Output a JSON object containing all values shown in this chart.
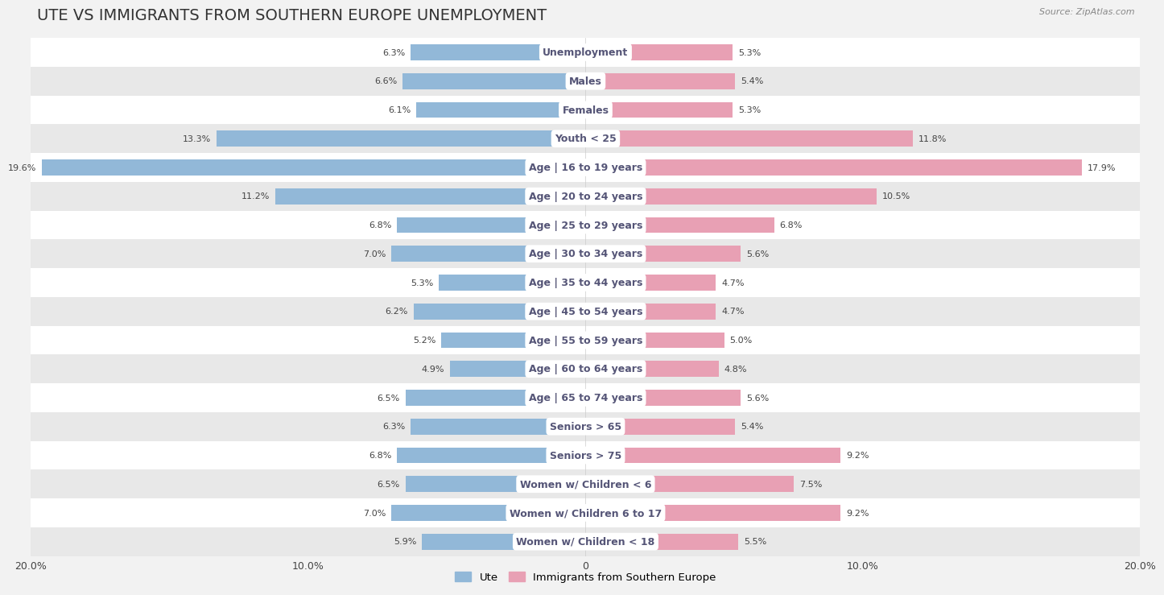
{
  "title": "UTE VS IMMIGRANTS FROM SOUTHERN EUROPE UNEMPLOYMENT",
  "source": "Source: ZipAtlas.com",
  "categories": [
    "Unemployment",
    "Males",
    "Females",
    "Youth < 25",
    "Age | 16 to 19 years",
    "Age | 20 to 24 years",
    "Age | 25 to 29 years",
    "Age | 30 to 34 years",
    "Age | 35 to 44 years",
    "Age | 45 to 54 years",
    "Age | 55 to 59 years",
    "Age | 60 to 64 years",
    "Age | 65 to 74 years",
    "Seniors > 65",
    "Seniors > 75",
    "Women w/ Children < 6",
    "Women w/ Children 6 to 17",
    "Women w/ Children < 18"
  ],
  "ute_values": [
    6.3,
    6.6,
    6.1,
    13.3,
    19.6,
    11.2,
    6.8,
    7.0,
    5.3,
    6.2,
    5.2,
    4.9,
    6.5,
    6.3,
    6.8,
    6.5,
    7.0,
    5.9
  ],
  "immigrant_values": [
    5.3,
    5.4,
    5.3,
    11.8,
    17.9,
    10.5,
    6.8,
    5.6,
    4.7,
    4.7,
    5.0,
    4.8,
    5.6,
    5.4,
    9.2,
    7.5,
    9.2,
    5.5
  ],
  "ute_color": "#92b8d8",
  "immigrant_color": "#e8a0b4",
  "ute_label": "Ute",
  "immigrant_label": "Immigrants from Southern Europe",
  "axis_max": 20.0,
  "background_color": "#f2f2f2",
  "row_colors_even": "#ffffff",
  "row_colors_odd": "#e8e8e8",
  "title_fontsize": 14,
  "label_fontsize": 9,
  "value_fontsize": 8,
  "bar_height": 0.55,
  "pill_color": "#ffffff",
  "pill_text_color": "#555577"
}
